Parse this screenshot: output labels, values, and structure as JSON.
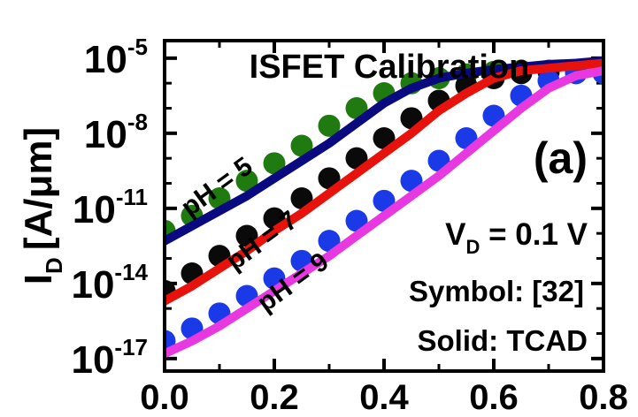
{
  "chart_data": {
    "type": "line",
    "title": "ISFET Calibration",
    "panel_label": "(a)",
    "xlabel": "",
    "ylabel": {
      "main": "I",
      "sub": "D",
      "unit": "[A/μm]"
    },
    "xlim": [
      0.0,
      0.8
    ],
    "ylim_log10": [
      -17.5,
      -4.3
    ],
    "yscale": "log",
    "x_ticks": [
      0.0,
      0.2,
      0.4,
      0.6,
      0.8
    ],
    "x_tick_labels": [
      "0.0",
      "0.2",
      "0.4",
      "0.6",
      "0.8"
    ],
    "y_ticks": [
      {
        "exp": -17,
        "base": "10",
        "power": "-17"
      },
      {
        "exp": -14,
        "base": "10",
        "power": "-14"
      },
      {
        "exp": -11,
        "base": "10",
        "power": "-11"
      },
      {
        "exp": -8,
        "base": "10",
        "power": "-8"
      },
      {
        "exp": -5,
        "base": "10",
        "power": "-5"
      }
    ],
    "annotations": {
      "vd": {
        "main": "V",
        "sub": "D",
        "rest": " = 0.1 V"
      },
      "symbol": "Symbol: [32]",
      "solid": "Solid: TCAD"
    },
    "series": [
      {
        "name": "pH = 5",
        "label": "pH = 5",
        "line_color": "#0a0a80",
        "marker_color": "#1f7a0f",
        "x": [
          0.0,
          0.05,
          0.1,
          0.15,
          0.2,
          0.25,
          0.3,
          0.35,
          0.4,
          0.45,
          0.5,
          0.55,
          0.6,
          0.65,
          0.7,
          0.75,
          0.8
        ],
        "log10_y": [
          -12.3,
          -11.7,
          -11.1,
          -10.5,
          -9.8,
          -9.1,
          -8.4,
          -7.6,
          -6.8,
          -6.2,
          -5.8,
          -5.6,
          -5.45,
          -5.35,
          -5.25,
          -5.2,
          -5.1
        ],
        "marker_log10_y": [
          -11.9,
          -11.3,
          -10.6,
          -9.9,
          -9.2,
          -8.5,
          -7.7,
          -7.0,
          -6.4,
          -6.0,
          -5.8,
          -5.65,
          -5.55,
          -5.5,
          -5.5,
          -5.5,
          -5.55
        ]
      },
      {
        "name": "pH = 7",
        "label": "pH = 7",
        "line_color": "#e8120c",
        "marker_color": "#0a0a0a",
        "x": [
          0.0,
          0.05,
          0.1,
          0.15,
          0.2,
          0.25,
          0.3,
          0.35,
          0.4,
          0.45,
          0.5,
          0.55,
          0.6,
          0.65,
          0.7,
          0.75,
          0.8
        ],
        "log10_y": [
          -14.7,
          -14.1,
          -13.4,
          -12.7,
          -11.9,
          -11.2,
          -10.4,
          -9.6,
          -8.8,
          -8.0,
          -7.1,
          -6.4,
          -5.8,
          -5.5,
          -5.4,
          -5.3,
          -5.2
        ],
        "marker_log10_y": [
          -14.3,
          -13.6,
          -12.9,
          -12.1,
          -11.4,
          -10.6,
          -9.8,
          -9.0,
          -8.2,
          -7.4,
          -6.7,
          -6.1,
          -5.8,
          -5.6,
          -5.55,
          -5.5,
          -5.5
        ]
      },
      {
        "name": "pH = 9",
        "label": "pH = 9",
        "line_color": "#e838e0",
        "marker_color": "#1a3ae8",
        "x": [
          0.0,
          0.05,
          0.1,
          0.15,
          0.2,
          0.25,
          0.3,
          0.35,
          0.4,
          0.45,
          0.5,
          0.55,
          0.6,
          0.65,
          0.7,
          0.75,
          0.8
        ],
        "log10_y": [
          -16.8,
          -16.3,
          -15.7,
          -15.0,
          -14.3,
          -13.6,
          -12.9,
          -12.1,
          -11.3,
          -10.5,
          -9.7,
          -8.8,
          -7.9,
          -7.0,
          -6.2,
          -5.7,
          -5.5
        ],
        "marker_log10_y": [
          -16.3,
          -15.8,
          -15.2,
          -14.5,
          -13.8,
          -13.1,
          -12.3,
          -11.5,
          -10.7,
          -9.9,
          -9.1,
          -8.2,
          -7.3,
          -6.5,
          -5.9,
          -5.6,
          -5.6
        ]
      }
    ]
  }
}
